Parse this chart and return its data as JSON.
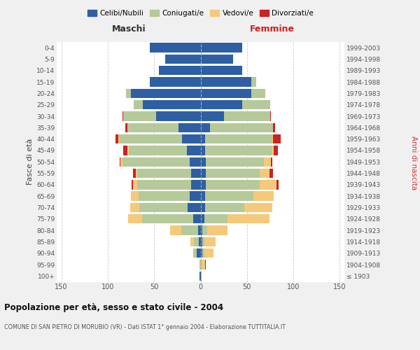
{
  "age_groups": [
    "100+",
    "95-99",
    "90-94",
    "85-89",
    "80-84",
    "75-79",
    "70-74",
    "65-69",
    "60-64",
    "55-59",
    "50-54",
    "45-49",
    "40-44",
    "35-39",
    "30-34",
    "25-29",
    "20-24",
    "15-19",
    "10-14",
    "5-9",
    "0-4"
  ],
  "birth_years": [
    "≤ 1903",
    "1904-1908",
    "1909-1913",
    "1914-1918",
    "1919-1923",
    "1924-1928",
    "1929-1933",
    "1934-1938",
    "1939-1943",
    "1944-1948",
    "1949-1953",
    "1954-1958",
    "1959-1963",
    "1964-1968",
    "1969-1973",
    "1974-1978",
    "1979-1983",
    "1984-1988",
    "1989-1993",
    "1994-1998",
    "1999-2003"
  ],
  "maschi": {
    "celibi": [
      1,
      0,
      4,
      2,
      3,
      8,
      14,
      12,
      10,
      10,
      12,
      15,
      20,
      24,
      48,
      62,
      75,
      55,
      45,
      38,
      55
    ],
    "coniugati": [
      0,
      1,
      4,
      5,
      18,
      55,
      52,
      55,
      58,
      58,
      72,
      62,
      68,
      55,
      35,
      10,
      5,
      0,
      0,
      0,
      0
    ],
    "vedovi": [
      0,
      0,
      0,
      4,
      12,
      15,
      10,
      8,
      5,
      2,
      2,
      2,
      1,
      0,
      0,
      0,
      0,
      0,
      0,
      0,
      0
    ],
    "divorziati": [
      0,
      0,
      0,
      0,
      0,
      0,
      0,
      0,
      1,
      3,
      1,
      4,
      3,
      2,
      1,
      0,
      0,
      0,
      0,
      0,
      0
    ]
  },
  "femmine": {
    "nubili": [
      0,
      0,
      2,
      2,
      2,
      4,
      5,
      5,
      6,
      6,
      6,
      5,
      5,
      10,
      25,
      45,
      55,
      55,
      45,
      35,
      45
    ],
    "coniugate": [
      0,
      0,
      2,
      2,
      5,
      25,
      42,
      52,
      58,
      58,
      62,
      72,
      72,
      68,
      50,
      30,
      15,
      5,
      0,
      0,
      0
    ],
    "vedove": [
      1,
      5,
      10,
      12,
      22,
      45,
      30,
      22,
      18,
      10,
      8,
      2,
      1,
      0,
      0,
      0,
      0,
      0,
      0,
      0,
      0
    ],
    "divorziate": [
      0,
      1,
      0,
      0,
      0,
      0,
      0,
      0,
      2,
      4,
      1,
      4,
      8,
      2,
      1,
      0,
      0,
      0,
      0,
      0,
      0
    ]
  },
  "colors": {
    "celibi_nubili": "#2E5FA3",
    "coniugati": "#B5C99A",
    "vedovi": "#F5C97A",
    "divorziati": "#CC2222"
  },
  "xlim": 155,
  "title": "Popolazione per età, sesso e stato civile - 2004",
  "subtitle": "COMUNE DI SAN PIETRO DI MORUBIO (VR) - Dati ISTAT 1° gennaio 2004 - Elaborazione TUTTITALIA.IT",
  "ylabel_left": "Fasce di età",
  "ylabel_right": "Anni di nascita",
  "header_left": "Maschi",
  "header_right": "Femmine",
  "bg_color": "#f0f0f0",
  "plot_bg": "#ffffff"
}
